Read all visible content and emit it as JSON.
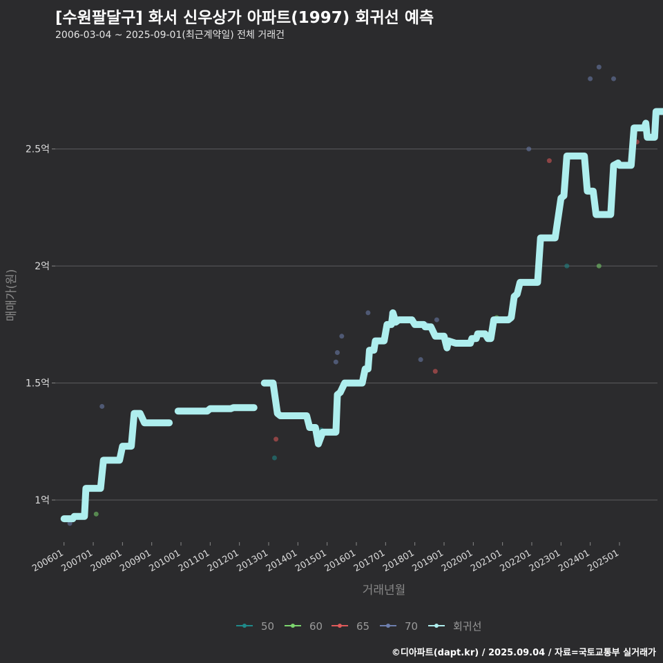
{
  "title": "[수원팔달구] 화서 신우상가 아파트(1997) 회귀선 예측",
  "subtitle": "2006-03-04 ~ 2025-09-01(최근계약일) 전체 거래건",
  "credit": "©디아파트(dapt.kr) / 2025.09.04 / 자료=국토교통부 실거래가",
  "colors": {
    "background": "#2b2b2d",
    "grid": "#5d5d60",
    "regression": "#aeeeee",
    "50": "#1f8a8a",
    "60": "#7cd66e",
    "65": "#e05a5a",
    "70": "#6e7fae"
  },
  "chart_data": {
    "type": "scatter",
    "title": "[수원팔달구] 화서 신우상가 아파트(1997) 회귀선 예측",
    "xlabel": "거래년월",
    "ylabel": "매매가(원)",
    "x_ticks": [
      "200601",
      "200701",
      "200801",
      "200901",
      "201001",
      "201101",
      "201201",
      "201301",
      "201401",
      "201501",
      "201601",
      "201701",
      "201801",
      "201901",
      "202001",
      "202101",
      "202201",
      "202301",
      "202401",
      "202501"
    ],
    "y_ticks": [
      "1억",
      "1.5억",
      "2억",
      "2.5억"
    ],
    "y_tick_values": [
      1.0,
      1.5,
      2.0,
      2.5
    ],
    "xlim": [
      2005.7,
      2026.3
    ],
    "ylim": [
      0.82,
      2.93
    ],
    "grid": true,
    "legend_position": "bottom",
    "legend": [
      {
        "key": "50",
        "label": "50"
      },
      {
        "key": "60",
        "label": "60"
      },
      {
        "key": "65",
        "label": "65"
      },
      {
        "key": "70",
        "label": "70"
      },
      {
        "key": "regression",
        "label": "회귀선"
      }
    ],
    "points": [
      {
        "series": "70",
        "x": 2006.2,
        "y": 0.9
      },
      {
        "series": "60",
        "x": 2007.1,
        "y": 0.94
      },
      {
        "series": "70",
        "x": 2007.3,
        "y": 1.4
      },
      {
        "series": "70",
        "x": 2012.9,
        "y": 1.5
      },
      {
        "series": "70",
        "x": 2013.1,
        "y": 1.5
      },
      {
        "series": "50",
        "x": 2013.2,
        "y": 1.18
      },
      {
        "series": "65",
        "x": 2013.25,
        "y": 1.26
      },
      {
        "series": "65",
        "x": 2014.7,
        "y": 1.29
      },
      {
        "series": "50",
        "x": 2014.8,
        "y": 1.3
      },
      {
        "series": "70",
        "x": 2015.3,
        "y": 1.59
      },
      {
        "series": "70",
        "x": 2015.35,
        "y": 1.63
      },
      {
        "series": "70",
        "x": 2015.5,
        "y": 1.7
      },
      {
        "series": "70",
        "x": 2016.4,
        "y": 1.8
      },
      {
        "series": "70",
        "x": 2017.0,
        "y": 1.72
      },
      {
        "series": "70",
        "x": 2017.2,
        "y": 1.8
      },
      {
        "series": "70",
        "x": 2018.2,
        "y": 1.6
      },
      {
        "series": "70",
        "x": 2018.4,
        "y": 1.75
      },
      {
        "series": "65",
        "x": 2018.7,
        "y": 1.55
      },
      {
        "series": "70",
        "x": 2018.75,
        "y": 1.77
      },
      {
        "series": "60",
        "x": 2020.8,
        "y": 1.78
      },
      {
        "series": "70",
        "x": 2021.9,
        "y": 2.5
      },
      {
        "series": "65",
        "x": 2022.6,
        "y": 2.45
      },
      {
        "series": "50",
        "x": 2023.2,
        "y": 2.0
      },
      {
        "series": "60",
        "x": 2024.3,
        "y": 2.0
      },
      {
        "series": "70",
        "x": 2024.0,
        "y": 2.8
      },
      {
        "series": "70",
        "x": 2024.3,
        "y": 2.85
      },
      {
        "series": "70",
        "x": 2024.8,
        "y": 2.8
      },
      {
        "series": "65",
        "x": 2025.6,
        "y": 2.53
      }
    ],
    "regression_segments": [
      [
        [
          2006.0,
          0.92
        ],
        [
          2006.3,
          0.92
        ],
        [
          2006.35,
          0.93
        ],
        [
          2006.7,
          0.93
        ],
        [
          2006.75,
          1.05
        ],
        [
          2007.25,
          1.05
        ],
        [
          2007.35,
          1.17
        ],
        [
          2007.9,
          1.17
        ],
        [
          2008.0,
          1.23
        ],
        [
          2008.3,
          1.23
        ],
        [
          2008.4,
          1.37
        ],
        [
          2008.6,
          1.37
        ],
        [
          2008.75,
          1.33
        ],
        [
          2009.6,
          1.33
        ]
      ],
      [
        [
          2009.9,
          1.38
        ],
        [
          2010.9,
          1.38
        ],
        [
          2011.0,
          1.39
        ],
        [
          2011.7,
          1.39
        ],
        [
          2011.8,
          1.395
        ],
        [
          2012.5,
          1.395
        ]
      ],
      [
        [
          2012.85,
          1.5
        ],
        [
          2013.15,
          1.5
        ],
        [
          2013.3,
          1.37
        ],
        [
          2013.4,
          1.36
        ],
        [
          2014.3,
          1.36
        ],
        [
          2014.4,
          1.31
        ],
        [
          2014.6,
          1.31
        ],
        [
          2014.7,
          1.24
        ],
        [
          2014.85,
          1.29
        ],
        [
          2015.3,
          1.29
        ],
        [
          2015.35,
          1.45
        ],
        [
          2015.45,
          1.46
        ],
        [
          2015.6,
          1.5
        ],
        [
          2016.2,
          1.5
        ],
        [
          2016.3,
          1.56
        ],
        [
          2016.4,
          1.56
        ],
        [
          2016.45,
          1.64
        ],
        [
          2016.6,
          1.64
        ],
        [
          2016.65,
          1.68
        ],
        [
          2016.95,
          1.68
        ],
        [
          2017.05,
          1.75
        ],
        [
          2017.2,
          1.75
        ],
        [
          2017.25,
          1.8
        ],
        [
          2017.35,
          1.76
        ],
        [
          2017.45,
          1.77
        ],
        [
          2017.9,
          1.77
        ],
        [
          2018.0,
          1.75
        ],
        [
          2018.3,
          1.75
        ],
        [
          2018.35,
          1.74
        ],
        [
          2018.55,
          1.74
        ],
        [
          2018.7,
          1.7
        ],
        [
          2019.0,
          1.7
        ],
        [
          2019.1,
          1.65
        ],
        [
          2019.15,
          1.68
        ],
        [
          2019.4,
          1.67
        ],
        [
          2019.9,
          1.67
        ],
        [
          2019.95,
          1.69
        ],
        [
          2020.1,
          1.69
        ],
        [
          2020.15,
          1.71
        ],
        [
          2020.4,
          1.71
        ],
        [
          2020.5,
          1.69
        ],
        [
          2020.6,
          1.69
        ],
        [
          2020.7,
          1.77
        ],
        [
          2021.2,
          1.77
        ],
        [
          2021.3,
          1.78
        ],
        [
          2021.4,
          1.87
        ],
        [
          2021.5,
          1.88
        ],
        [
          2021.6,
          1.93
        ],
        [
          2022.2,
          1.93
        ],
        [
          2022.3,
          2.12
        ],
        [
          2022.8,
          2.12
        ],
        [
          2023.0,
          2.29
        ],
        [
          2023.1,
          2.3
        ],
        [
          2023.2,
          2.47
        ],
        [
          2023.8,
          2.47
        ],
        [
          2023.9,
          2.32
        ],
        [
          2024.1,
          2.32
        ],
        [
          2024.2,
          2.22
        ],
        [
          2024.7,
          2.22
        ],
        [
          2024.8,
          2.43
        ],
        [
          2024.95,
          2.44
        ],
        [
          2025.0,
          2.43
        ],
        [
          2025.4,
          2.43
        ],
        [
          2025.5,
          2.59
        ],
        [
          2025.85,
          2.59
        ],
        [
          2025.9,
          2.61
        ],
        [
          2025.95,
          2.55
        ],
        [
          2026.2,
          2.55
        ],
        [
          2026.25,
          2.66
        ],
        [
          2026.6,
          2.66
        ]
      ]
    ]
  }
}
